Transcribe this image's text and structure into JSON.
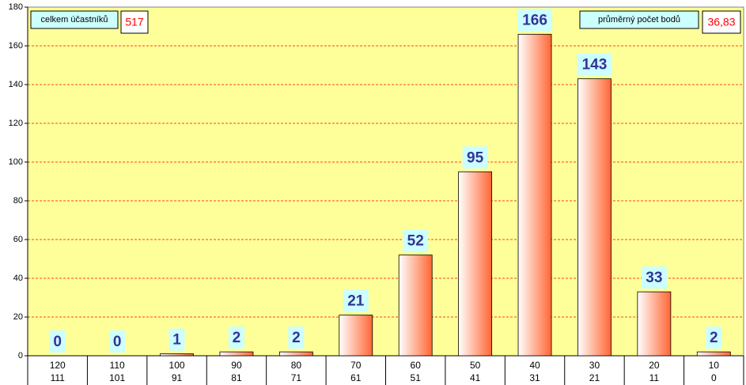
{
  "chart_data": {
    "type": "bar",
    "categories": [
      [
        "120",
        "111"
      ],
      [
        "110",
        "101"
      ],
      [
        "100",
        "91"
      ],
      [
        "90",
        "81"
      ],
      [
        "80",
        "71"
      ],
      [
        "70",
        "61"
      ],
      [
        "60",
        "51"
      ],
      [
        "50",
        "41"
      ],
      [
        "40",
        "31"
      ],
      [
        "30",
        "21"
      ],
      [
        "20",
        "11"
      ],
      [
        "10",
        "0"
      ]
    ],
    "values": [
      0,
      0,
      1,
      2,
      2,
      21,
      52,
      95,
      166,
      143,
      33,
      2
    ],
    "color": "#ff6633",
    "ylim": [
      0,
      180
    ],
    "yticks": [
      0,
      20,
      40,
      60,
      80,
      100,
      120,
      140,
      160,
      180
    ],
    "grid": true,
    "annotations": [
      {
        "label": "celkem účastníků",
        "value": "517"
      },
      {
        "label": "průměrný počet bodů",
        "value": "36,83"
      }
    ]
  }
}
